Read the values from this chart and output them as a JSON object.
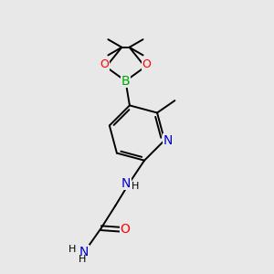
{
  "background_color": "#e8e8e8",
  "atom_colors": {
    "C": "#000000",
    "N": "#0000cd",
    "O": "#ff0000",
    "B": "#00aa00",
    "H": "#000000"
  },
  "figsize": [
    3.0,
    3.0
  ],
  "dpi": 100,
  "bond_lw": 1.4,
  "font_size": 9
}
